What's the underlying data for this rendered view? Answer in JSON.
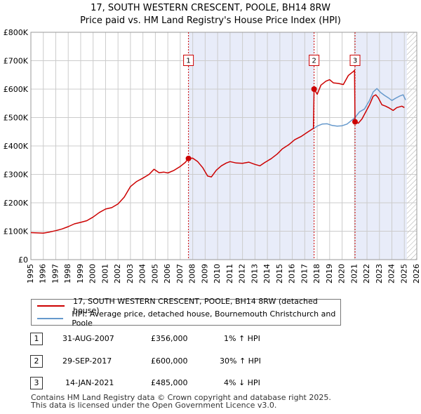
{
  "title_line1": "17, SOUTH WESTERN CRESCENT, POOLE, BH14 8RW",
  "title_line2": "Price paid vs. HM Land Registry's House Price Index (HPI)",
  "chart_data": {
    "type": "line",
    "title": "17, SOUTH WESTERN CRESCENT, POOLE, BH14 8RW",
    "subtitle": "Price paid vs. HM Land Registry's House Price Index (HPI)",
    "xlabel": "",
    "ylabel": "",
    "xlim": [
      1995,
      2026
    ],
    "ylim": [
      0,
      800000
    ],
    "grid": true,
    "x_ticks": [
      "1995",
      "1996",
      "1997",
      "1998",
      "1999",
      "2000",
      "2001",
      "2002",
      "2003",
      "2004",
      "2005",
      "2006",
      "2007",
      "2008",
      "2009",
      "2010",
      "2011",
      "2012",
      "2013",
      "2014",
      "2015",
      "2016",
      "2017",
      "2018",
      "2019",
      "2020",
      "2021",
      "2022",
      "2023",
      "2024",
      "2025",
      "2026"
    ],
    "y_ticks": [
      {
        "value": 0,
        "label": "£0"
      },
      {
        "value": 100000,
        "label": "£100K"
      },
      {
        "value": 200000,
        "label": "£200K"
      },
      {
        "value": 300000,
        "label": "£300K"
      },
      {
        "value": 400000,
        "label": "£400K"
      },
      {
        "value": 500000,
        "label": "£500K"
      },
      {
        "value": 600000,
        "label": "£600K"
      },
      {
        "value": 700000,
        "label": "£700K"
      },
      {
        "value": 800000,
        "label": "£800K"
      }
    ],
    "shaded_periods": [
      [
        2007.66,
        2017.75
      ],
      [
        2021.04,
        2025.2
      ]
    ],
    "hatched_from": 2025.2,
    "series": [
      {
        "name": "17, SOUTH WESTERN CRESCENT, POOLE, BH14 8RW (detached house)",
        "color": "#cc0000",
        "points": [
          [
            1995.0,
            95000
          ],
          [
            1995.5,
            94000
          ],
          [
            1996.0,
            93000
          ],
          [
            1996.5,
            97000
          ],
          [
            1997.0,
            102000
          ],
          [
            1997.5,
            108000
          ],
          [
            1998.0,
            116000
          ],
          [
            1998.5,
            126000
          ],
          [
            1999.0,
            131000
          ],
          [
            1999.5,
            137000
          ],
          [
            2000.0,
            150000
          ],
          [
            2000.5,
            166000
          ],
          [
            2001.0,
            178000
          ],
          [
            2001.5,
            183000
          ],
          [
            2002.0,
            196000
          ],
          [
            2002.5,
            220000
          ],
          [
            2003.0,
            257000
          ],
          [
            2003.5,
            275000
          ],
          [
            2004.0,
            287000
          ],
          [
            2004.5,
            300000
          ],
          [
            2004.9,
            318000
          ],
          [
            2005.3,
            306000
          ],
          [
            2005.7,
            308000
          ],
          [
            2006.0,
            305000
          ],
          [
            2006.5,
            314000
          ],
          [
            2007.0,
            328000
          ],
          [
            2007.4,
            342000
          ],
          [
            2007.66,
            356000
          ],
          [
            2008.0,
            357000
          ],
          [
            2008.4,
            345000
          ],
          [
            2008.8,
            324000
          ],
          [
            2009.2,
            294000
          ],
          [
            2009.5,
            291000
          ],
          [
            2009.9,
            315000
          ],
          [
            2010.3,
            330000
          ],
          [
            2010.7,
            340000
          ],
          [
            2011.0,
            345000
          ],
          [
            2011.5,
            340000
          ],
          [
            2012.0,
            339000
          ],
          [
            2012.5,
            343000
          ],
          [
            2013.0,
            335000
          ],
          [
            2013.4,
            330000
          ],
          [
            2013.8,
            342000
          ],
          [
            2014.3,
            355000
          ],
          [
            2014.8,
            372000
          ],
          [
            2015.2,
            390000
          ],
          [
            2015.7,
            404000
          ],
          [
            2016.2,
            422000
          ],
          [
            2016.7,
            433000
          ],
          [
            2017.2,
            448000
          ],
          [
            2017.7,
            462000
          ],
          [
            2017.75,
            600000
          ],
          [
            2018.0,
            582000
          ],
          [
            2018.3,
            614000
          ],
          [
            2018.7,
            628000
          ],
          [
            2019.0,
            633000
          ],
          [
            2019.3,
            622000
          ],
          [
            2019.7,
            620000
          ],
          [
            2020.1,
            616000
          ],
          [
            2020.5,
            648000
          ],
          [
            2020.9,
            662000
          ],
          [
            2021.0,
            666000
          ],
          [
            2021.04,
            485000
          ],
          [
            2021.3,
            480000
          ],
          [
            2021.6,
            495000
          ],
          [
            2021.9,
            520000
          ],
          [
            2022.2,
            545000
          ],
          [
            2022.5,
            575000
          ],
          [
            2022.7,
            580000
          ],
          [
            2022.9,
            570000
          ],
          [
            2023.2,
            545000
          ],
          [
            2023.5,
            540000
          ],
          [
            2023.8,
            533000
          ],
          [
            2024.1,
            525000
          ],
          [
            2024.4,
            535000
          ],
          [
            2024.8,
            540000
          ],
          [
            2025.0,
            535000
          ]
        ]
      },
      {
        "name": "HPI: Average price, detached house, Bournemouth Christchurch and Poole",
        "color": "#6699cc",
        "points": [
          [
            2017.75,
            462000
          ],
          [
            2018.0,
            470000
          ],
          [
            2018.4,
            477000
          ],
          [
            2018.8,
            478000
          ],
          [
            2019.2,
            472000
          ],
          [
            2019.6,
            470000
          ],
          [
            2020.0,
            471000
          ],
          [
            2020.4,
            477000
          ],
          [
            2020.8,
            491000
          ],
          [
            2021.04,
            500000
          ],
          [
            2021.4,
            520000
          ],
          [
            2021.8,
            530000
          ],
          [
            2022.2,
            560000
          ],
          [
            2022.5,
            590000
          ],
          [
            2022.8,
            602000
          ],
          [
            2023.1,
            588000
          ],
          [
            2023.4,
            578000
          ],
          [
            2023.7,
            570000
          ],
          [
            2024.0,
            560000
          ],
          [
            2024.3,
            568000
          ],
          [
            2024.6,
            575000
          ],
          [
            2024.9,
            580000
          ],
          [
            2025.1,
            562000
          ]
        ]
      }
    ],
    "transactions": [
      {
        "num": "1",
        "x": 2007.66,
        "price": 356000,
        "date": "31-AUG-2007",
        "price_label": "£356,000",
        "hpi_label": "1% ↑ HPI"
      },
      {
        "num": "2",
        "x": 2017.75,
        "price": 600000,
        "date": "29-SEP-2017",
        "price_label": "£600,000",
        "hpi_label": "30% ↑ HPI"
      },
      {
        "num": "3",
        "x": 2021.04,
        "price": 485000,
        "date": "14-JAN-2021",
        "price_label": "£485,000",
        "hpi_label": "4% ↓ HPI"
      }
    ],
    "marker_label_value": 700000
  },
  "legend": {
    "price_label": "17, SOUTH WESTERN CRESCENT, POOLE, BH14 8RW (detached house)",
    "hpi_label": "HPI: Average price, detached house, Bournemouth Christchurch and Poole"
  },
  "colors": {
    "price": "#cc0000",
    "hpi": "#6699cc",
    "shade": "#e8ecf9",
    "grid": "#cccccc"
  },
  "footer": {
    "line1": "Contains HM Land Registry data © Crown copyright and database right 2025.",
    "line2": "This data is licensed under the Open Government Licence v3.0."
  }
}
